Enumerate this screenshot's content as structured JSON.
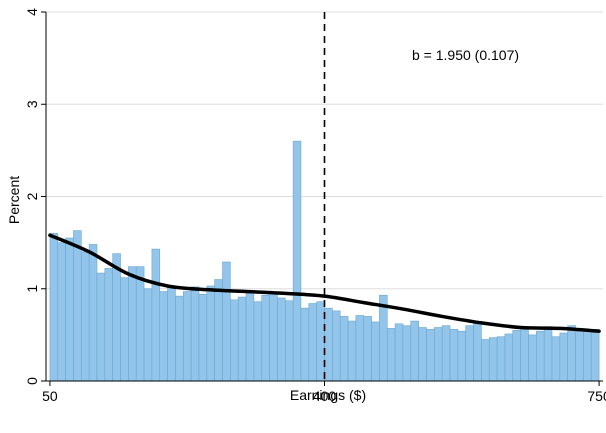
{
  "chart_data": {
    "type": "bar",
    "title": "",
    "xlabel": "Earnings ($)",
    "ylabel": "Percent",
    "xlim": [
      45,
      755
    ],
    "ylim": [
      0,
      4
    ],
    "x_ticks": [
      50,
      400,
      750
    ],
    "y_ticks": [
      0,
      1,
      2,
      3,
      4
    ],
    "grid": "horizontal",
    "bin_width": 10,
    "bar_color": "#92c5e9",
    "bar_edge_color": "#6aa6d4",
    "bins_start": [
      50,
      60,
      70,
      80,
      90,
      100,
      110,
      120,
      130,
      140,
      150,
      160,
      170,
      180,
      190,
      200,
      210,
      220,
      230,
      240,
      250,
      260,
      270,
      280,
      290,
      300,
      310,
      320,
      330,
      340,
      350,
      360,
      370,
      380,
      390,
      400,
      410,
      420,
      430,
      440,
      450,
      460,
      470,
      480,
      490,
      500,
      510,
      520,
      530,
      540,
      550,
      560,
      570,
      580,
      590,
      600,
      610,
      620,
      630,
      640,
      650,
      660,
      670,
      680,
      690,
      700,
      710,
      720,
      730,
      740
    ],
    "values": [
      1.6,
      1.5,
      1.55,
      1.63,
      1.4,
      1.48,
      1.17,
      1.22,
      1.38,
      1.12,
      1.24,
      1.24,
      1.0,
      1.43,
      0.97,
      1.03,
      0.92,
      0.97,
      1.02,
      0.94,
      1.03,
      1.1,
      1.29,
      0.88,
      0.91,
      0.98,
      0.86,
      0.93,
      0.95,
      0.9,
      0.87,
      2.6,
      0.79,
      0.84,
      0.86,
      0.79,
      0.76,
      0.7,
      0.65,
      0.71,
      0.7,
      0.64,
      0.93,
      0.57,
      0.62,
      0.6,
      0.65,
      0.58,
      0.56,
      0.58,
      0.6,
      0.56,
      0.54,
      0.6,
      0.62,
      0.45,
      0.47,
      0.48,
      0.51,
      0.55,
      0.56,
      0.5,
      0.54,
      0.59,
      0.48,
      0.52,
      0.6,
      0.55,
      0.54,
      0.56
    ],
    "fit_line": {
      "x": [
        50,
        100,
        150,
        200,
        250,
        300,
        350,
        400,
        450,
        500,
        550,
        600,
        650,
        700,
        750
      ],
      "y": [
        1.58,
        1.4,
        1.16,
        1.03,
        0.99,
        0.97,
        0.95,
        0.92,
        0.85,
        0.78,
        0.7,
        0.63,
        0.58,
        0.57,
        0.54
      ]
    },
    "reference_line": {
      "x": 400,
      "style": "dashed"
    },
    "annotation": "b = 1.950 (0.107)"
  },
  "colors": {
    "fit_line": "#000000",
    "grid": "#dddddd",
    "axis": "#000000"
  }
}
